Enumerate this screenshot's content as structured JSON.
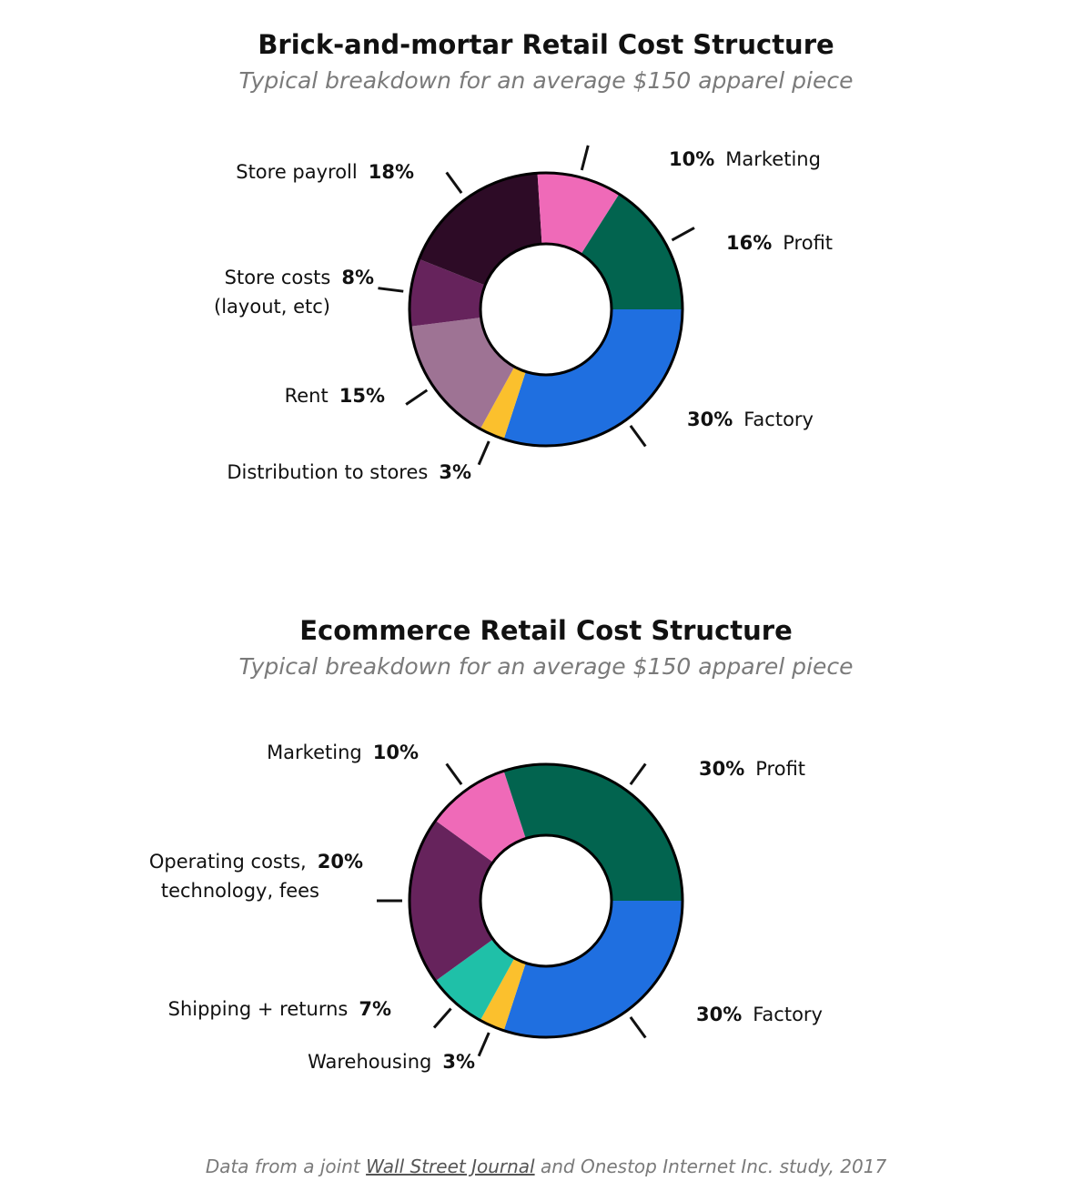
{
  "chart_data": [
    {
      "type": "pie",
      "variant": "donut",
      "title": "Brick-and-mortar Retail Cost Structure",
      "subtitle": "Typical breakdown for an average $150 apparel piece",
      "slices": [
        {
          "label": "Factory",
          "value": 30,
          "pct_label": "30%",
          "color": "#1f6fe0"
        },
        {
          "label": "Distribution to stores",
          "value": 3,
          "pct_label": "3%",
          "color": "#fbc02d"
        },
        {
          "label": "Rent",
          "value": 15,
          "pct_label": "15%",
          "color": "#9e7394"
        },
        {
          "label": "Store costs",
          "label2": "(layout, etc)",
          "value": 8,
          "pct_label": "8%",
          "color": "#66235c"
        },
        {
          "label": "Store payroll",
          "value": 18,
          "pct_label": "18%",
          "color": "#2d0b26"
        },
        {
          "label": "Marketing",
          "value": 10,
          "pct_label": "10%",
          "color": "#ef6ab8"
        },
        {
          "label": "Profit",
          "value": 16,
          "pct_label": "16%",
          "color": "#02644f"
        }
      ]
    },
    {
      "type": "pie",
      "variant": "donut",
      "title": "Ecommerce Retail Cost Structure",
      "subtitle": "Typical breakdown for an average $150 apparel piece",
      "slices": [
        {
          "label": "Factory",
          "value": 30,
          "pct_label": "30%",
          "color": "#1f6fe0"
        },
        {
          "label": "Warehousing",
          "value": 3,
          "pct_label": "3%",
          "color": "#fbc02d"
        },
        {
          "label": "Shipping + returns",
          "value": 7,
          "pct_label": "7%",
          "color": "#1fc0a8"
        },
        {
          "label": "Operating costs,",
          "label2": "technology, fees",
          "value": 20,
          "pct_label": "20%",
          "color": "#66235c"
        },
        {
          "label": "Marketing",
          "value": 10,
          "pct_label": "10%",
          "color": "#ef6ab8"
        },
        {
          "label": "Profit",
          "value": 30,
          "pct_label": "30%",
          "color": "#02644f"
        }
      ]
    }
  ],
  "footer": {
    "prefix": "Data from a joint ",
    "source_link": "Wall Street Journal",
    "suffix": " and Onestop Internet Inc. study, 2017"
  }
}
